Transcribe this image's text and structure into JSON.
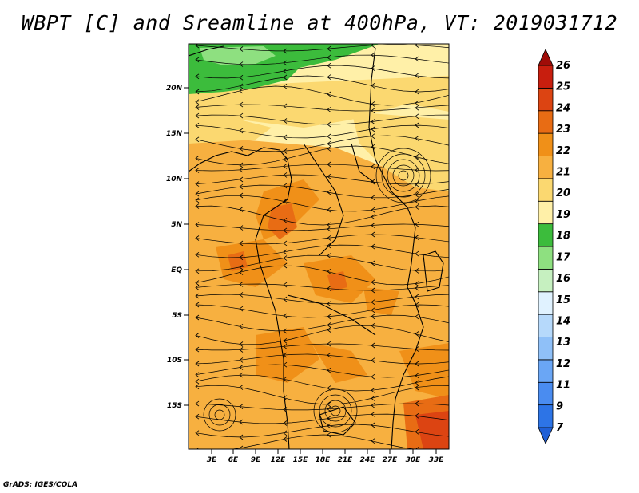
{
  "title": "WBPT [C] and Sreamline at 400hPa, VT: 2019031712",
  "footer": "GrADS: IGES/COLA",
  "map": {
    "lon_ticks": [
      "3E",
      "6E",
      "9E",
      "12E",
      "15E",
      "18E",
      "21E",
      "24E",
      "27E",
      "30E",
      "33E"
    ],
    "lat_ticks": [
      "20N",
      "15N",
      "10N",
      "5N",
      "EQ",
      "5S",
      "10S",
      "15S"
    ]
  },
  "colorbar": {
    "labels": [
      "7",
      "9",
      "11",
      "12",
      "13",
      "14",
      "15",
      "16",
      "17",
      "18",
      "19",
      "20",
      "21",
      "22",
      "23",
      "24",
      "25",
      "26"
    ],
    "colors": [
      "#1f5fd6",
      "#2d74e6",
      "#4a8cf0",
      "#6aa6f5",
      "#8fc0f8",
      "#b6d9fb",
      "#e0f2ff",
      "#c6f0c0",
      "#8ee080",
      "#3cbc3c",
      "#fff0a8",
      "#fbd870",
      "#f7b040",
      "#f09018",
      "#e86c14",
      "#dc4412",
      "#c81e0e",
      "#a00c08"
    ]
  },
  "field_colors": {
    "green": "#3cbc3c",
    "light_green": "#8ee080",
    "pale_yellow": "#fff0a8",
    "yellow": "#fbd870",
    "light_orange": "#f7b040",
    "orange": "#f09018",
    "dark_orange": "#e86c14",
    "red": "#dc4412"
  }
}
